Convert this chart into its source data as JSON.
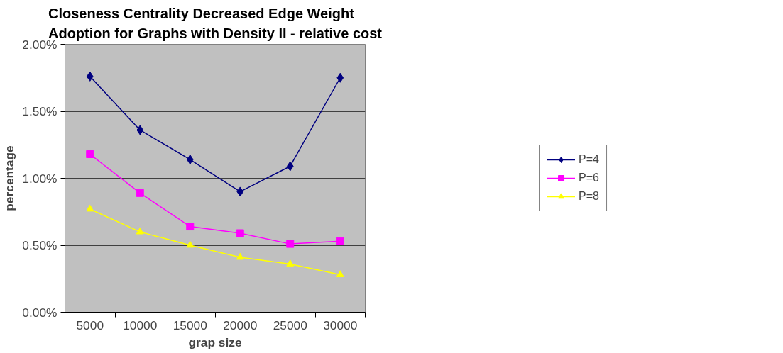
{
  "chart_data": {
    "type": "line",
    "title": "Closeness Centrality Decreased Edge Weight Adoption for Graphs with Density II - relative cost",
    "xlabel": "grap size",
    "ylabel": "percentage",
    "categories": [
      "5000",
      "10000",
      "15000",
      "20000",
      "25000",
      "30000"
    ],
    "series": [
      {
        "name": "P=4",
        "color": "#000080",
        "marker": "diamond",
        "values": [
          1.76,
          1.36,
          1.14,
          0.9,
          1.09,
          1.75
        ]
      },
      {
        "name": "P=6",
        "color": "#ff00ff",
        "marker": "square",
        "values": [
          1.18,
          0.89,
          0.64,
          0.59,
          0.51,
          0.53
        ]
      },
      {
        "name": "P=8",
        "color": "#ffff00",
        "marker": "triangle",
        "values": [
          0.77,
          0.6,
          0.5,
          0.41,
          0.36,
          0.28
        ]
      }
    ],
    "ylim": [
      0,
      2
    ],
    "yticks": [
      {
        "value": 0,
        "label": "0.00%"
      },
      {
        "value": 0.5,
        "label": "0.50%"
      },
      {
        "value": 1,
        "label": "1.00%"
      },
      {
        "value": 1.5,
        "label": "1.50%"
      },
      {
        "value": 2,
        "label": "2.00%"
      }
    ],
    "grid": "y",
    "legend": "right"
  }
}
